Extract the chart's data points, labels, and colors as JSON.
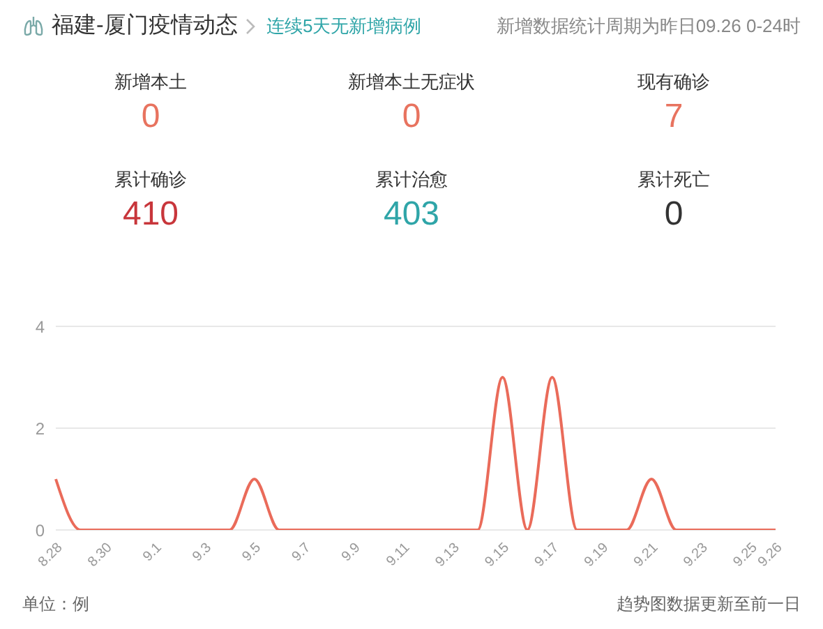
{
  "chart_data": [
    {
      "type": "other",
      "title": "福建-厦门疫情动态",
      "subtitle": "连续5天无新增病例",
      "annotations": [
        "新增数据统计周期为昨日09.26 0-24时"
      ],
      "categories": [
        "新增本土",
        "新增本土无症状",
        "现有确诊",
        "累计确诊",
        "累计治愈",
        "累计死亡"
      ],
      "values": [
        0,
        0,
        7,
        410,
        403,
        0
      ],
      "data_labels": true,
      "colors": [
        "#e8735f",
        "#e8735f",
        "#e8735f",
        "#c8363b",
        "#2fa5a8",
        "#333333"
      ]
    },
    {
      "type": "line",
      "categories": [
        "8.28",
        null,
        "8.30",
        null,
        "9.1",
        null,
        "9.3",
        null,
        "9.5",
        null,
        "9.7",
        null,
        "9.9",
        null,
        "9.11",
        null,
        "9.13",
        null,
        "9.15",
        null,
        "9.17",
        null,
        "9.19",
        null,
        "9.21",
        null,
        "9.23",
        null,
        "9.25",
        "9.26"
      ],
      "series": [
        {
          "color": "#ea6b5a",
          "values": [
            1,
            0,
            0,
            0,
            0,
            0,
            0,
            0,
            1,
            0,
            0,
            0,
            0,
            0,
            0,
            0,
            0,
            0,
            3,
            0,
            3,
            0,
            0,
            0,
            1,
            0,
            0,
            0,
            0,
            0
          ]
        }
      ],
      "ylim": [
        0,
        4
      ],
      "yticks": [
        0,
        2,
        4
      ],
      "grid": "y",
      "legend": false,
      "marker": "none",
      "annotations": [
        "单位：例",
        "趋势图数据更新至前一日"
      ]
    }
  ]
}
